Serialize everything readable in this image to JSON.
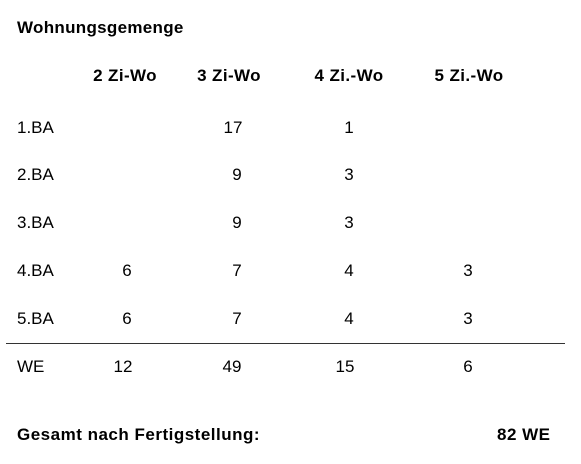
{
  "title": "Wohnungsgemenge",
  "columns": [
    "2 Zi-Wo",
    "3 Zi-Wo",
    "4 Zi.-Wo",
    "5 Zi.-Wo"
  ],
  "rows": [
    {
      "label": "1.BA",
      "values": [
        "",
        "17",
        "1",
        ""
      ]
    },
    {
      "label": "2.BA",
      "values": [
        "",
        "9",
        "3",
        ""
      ]
    },
    {
      "label": "3.BA",
      "values": [
        "",
        "9",
        "3",
        ""
      ]
    },
    {
      "label": "4.BA",
      "values": [
        "6",
        "7",
        "4",
        "3"
      ]
    },
    {
      "label": "5.BA",
      "values": [
        "6",
        "7",
        "4",
        "3"
      ]
    }
  ],
  "total_row": {
    "label": "WE",
    "values": [
      "12",
      "49",
      "15",
      "6"
    ]
  },
  "summary": {
    "label": "Gesamt nach Fertigstellung:",
    "value": "82 WE"
  }
}
